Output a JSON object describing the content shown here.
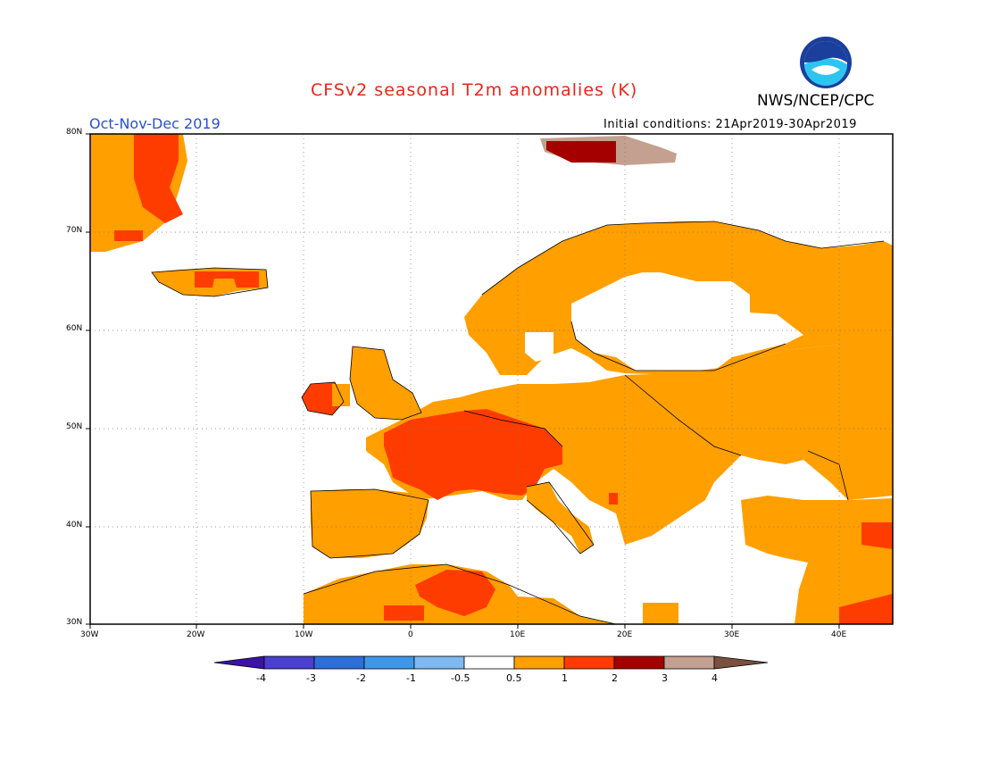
{
  "header": {
    "title": "CFSv2 seasonal T2m anomalies (K)",
    "agency": "NWS/NCEP/CPC",
    "period": "Oct-Nov-Dec 2019",
    "initial_conditions": "Initial conditions: 21Apr2019-30Apr2019",
    "logo_text": "NOAA"
  },
  "map": {
    "lat_labels": [
      "80N",
      "70N",
      "60N",
      "50N",
      "40N",
      "30N"
    ],
    "lon_labels": [
      "30W",
      "20W",
      "10W",
      "0",
      "10E",
      "20E",
      "30E",
      "40E"
    ],
    "background_color": "#ffffff",
    "gridlines": "dotted"
  },
  "colorbar": {
    "labels": [
      "-4",
      "-3",
      "-2",
      "-1",
      "-0.5",
      "0.5",
      "1",
      "2",
      "3",
      "4"
    ],
    "colors": [
      "#3b13a6",
      "#4a3fcf",
      "#2d6fd8",
      "#3f97ea",
      "#80b9f0",
      "#ffffff",
      "#ff9f00",
      "#ff3c00",
      "#a50000",
      "#c4a090",
      "#7a5040"
    ]
  },
  "palette": {
    "orange": "#ff9f00",
    "red_orange": "#ff3c00",
    "dark_red": "#a50000",
    "tan": "#c4a090",
    "coast": "#000000"
  }
}
